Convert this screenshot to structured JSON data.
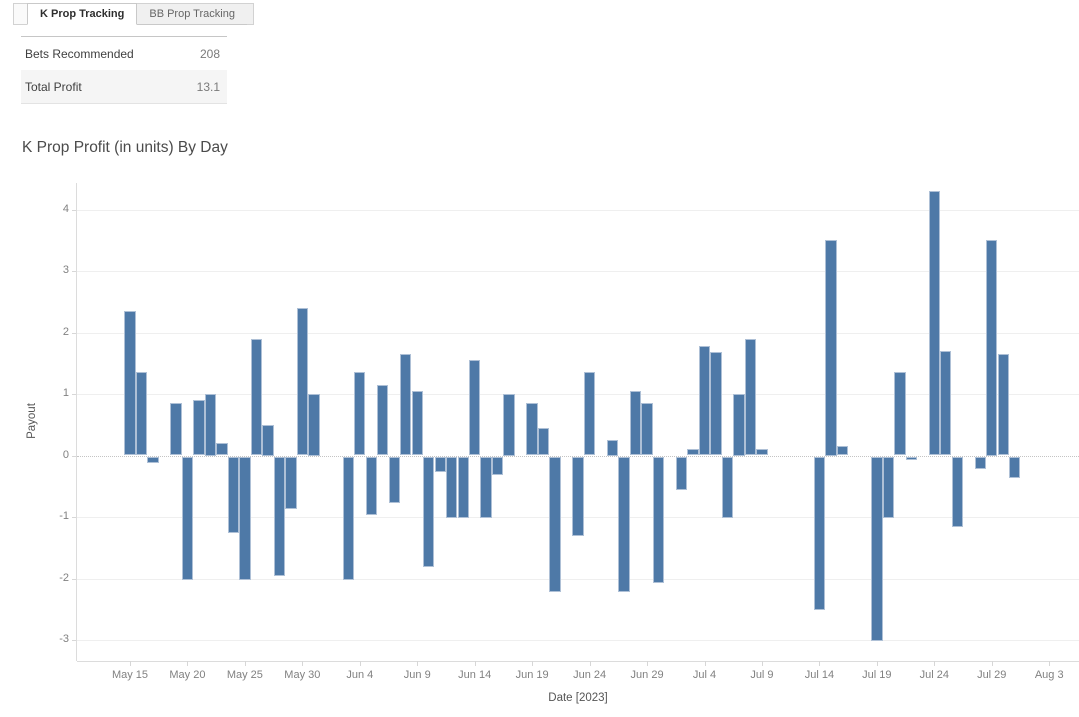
{
  "tab_bar": {
    "tabs": [
      {
        "label": "K Prop Tracking",
        "active": true
      },
      {
        "label": "BB Prop Tracking",
        "active": false
      }
    ]
  },
  "summary_table": {
    "rows": [
      {
        "label": "Bets Recommended",
        "value": "208"
      },
      {
        "label": "Total Profit",
        "value": "13.1"
      }
    ]
  },
  "chart_data": {
    "type": "bar",
    "title": "K Prop Profit (in units) By Day",
    "xlabel": "Date [2023]",
    "ylabel": "Payout",
    "ylim": [
      -3.35,
      4.45
    ],
    "grid": true,
    "y_ticks": [
      4,
      3,
      2,
      1,
      0,
      -1,
      -2,
      -3
    ],
    "x_tick_labels": [
      "May 15",
      "May 20",
      "May 25",
      "May 30",
      "Jun 4",
      "Jun 9",
      "Jun 14",
      "Jun 19",
      "Jun 24",
      "Jun 29",
      "Jul 4",
      "Jul 9",
      "Jul 14",
      "Jul 19",
      "Jul 24",
      "Jul 29",
      "Aug 3"
    ],
    "bar_color": "#4e79a7",
    "points": [
      {
        "date": "May 15",
        "value": 2.35
      },
      {
        "date": "May 16",
        "value": 1.35
      },
      {
        "date": "May 17",
        "value": -0.1
      },
      {
        "date": "May 19",
        "value": 0.85
      },
      {
        "date": "May 20",
        "value": -2.0
      },
      {
        "date": "May 21",
        "value": 0.9
      },
      {
        "date": "May 22",
        "value": 1.0
      },
      {
        "date": "May 23",
        "value": 0.2
      },
      {
        "date": "May 24",
        "value": -1.25
      },
      {
        "date": "May 25",
        "value": -2.0
      },
      {
        "date": "May 26",
        "value": 1.9
      },
      {
        "date": "May 27",
        "value": 0.5
      },
      {
        "date": "May 28",
        "value": -1.95
      },
      {
        "date": "May 29",
        "value": -0.85
      },
      {
        "date": "May 30",
        "value": 2.4
      },
      {
        "date": "May 31",
        "value": 1.0
      },
      {
        "date": "Jun 3",
        "value": -2.0
      },
      {
        "date": "Jun 4",
        "value": 1.35
      },
      {
        "date": "Jun 5",
        "value": -0.95
      },
      {
        "date": "Jun 6",
        "value": 1.15
      },
      {
        "date": "Jun 7",
        "value": -0.75
      },
      {
        "date": "Jun 8",
        "value": 1.65
      },
      {
        "date": "Jun 9",
        "value": 1.05
      },
      {
        "date": "Jun 10",
        "value": -1.8
      },
      {
        "date": "Jun 11",
        "value": -0.25
      },
      {
        "date": "Jun 12",
        "value": -1.0
      },
      {
        "date": "Jun 13",
        "value": -1.0
      },
      {
        "date": "Jun 14",
        "value": 1.55
      },
      {
        "date": "Jun 15",
        "value": -1.0
      },
      {
        "date": "Jun 16",
        "value": -0.3
      },
      {
        "date": "Jun 17",
        "value": 1.0
      },
      {
        "date": "Jun 19",
        "value": 0.85
      },
      {
        "date": "Jun 20",
        "value": 0.45
      },
      {
        "date": "Jun 21",
        "value": -2.2
      },
      {
        "date": "Jun 23",
        "value": -1.3
      },
      {
        "date": "Jun 24",
        "value": 1.35
      },
      {
        "date": "Jun 26",
        "value": 0.25
      },
      {
        "date": "Jun 27",
        "value": -2.2
      },
      {
        "date": "Jun 28",
        "value": 1.05
      },
      {
        "date": "Jun 29",
        "value": 0.85
      },
      {
        "date": "Jun 30",
        "value": -2.05
      },
      {
        "date": "Jul 2",
        "value": -0.55
      },
      {
        "date": "Jul 3",
        "value": 0.1
      },
      {
        "date": "Jul 4",
        "value": 1.78
      },
      {
        "date": "Jul 5",
        "value": 1.68
      },
      {
        "date": "Jul 6",
        "value": -1.0
      },
      {
        "date": "Jul 7",
        "value": 1.0
      },
      {
        "date": "Jul 8",
        "value": 1.9
      },
      {
        "date": "Jul 9",
        "value": 0.1
      },
      {
        "date": "Jul 14",
        "value": -2.5
      },
      {
        "date": "Jul 15",
        "value": 3.5
      },
      {
        "date": "Jul 16",
        "value": 0.15
      },
      {
        "date": "Jul 19",
        "value": -3.0
      },
      {
        "date": "Jul 20",
        "value": -1.0
      },
      {
        "date": "Jul 21",
        "value": 1.35
      },
      {
        "date": "Jul 22",
        "value": -0.05
      },
      {
        "date": "Jul 24",
        "value": 4.3
      },
      {
        "date": "Jul 25",
        "value": 1.7
      },
      {
        "date": "Jul 26",
        "value": -1.15
      },
      {
        "date": "Jul 28",
        "value": -0.2
      },
      {
        "date": "Jul 29",
        "value": 3.5
      },
      {
        "date": "Jul 30",
        "value": 1.65
      },
      {
        "date": "Jul 31",
        "value": -0.35
      }
    ]
  }
}
